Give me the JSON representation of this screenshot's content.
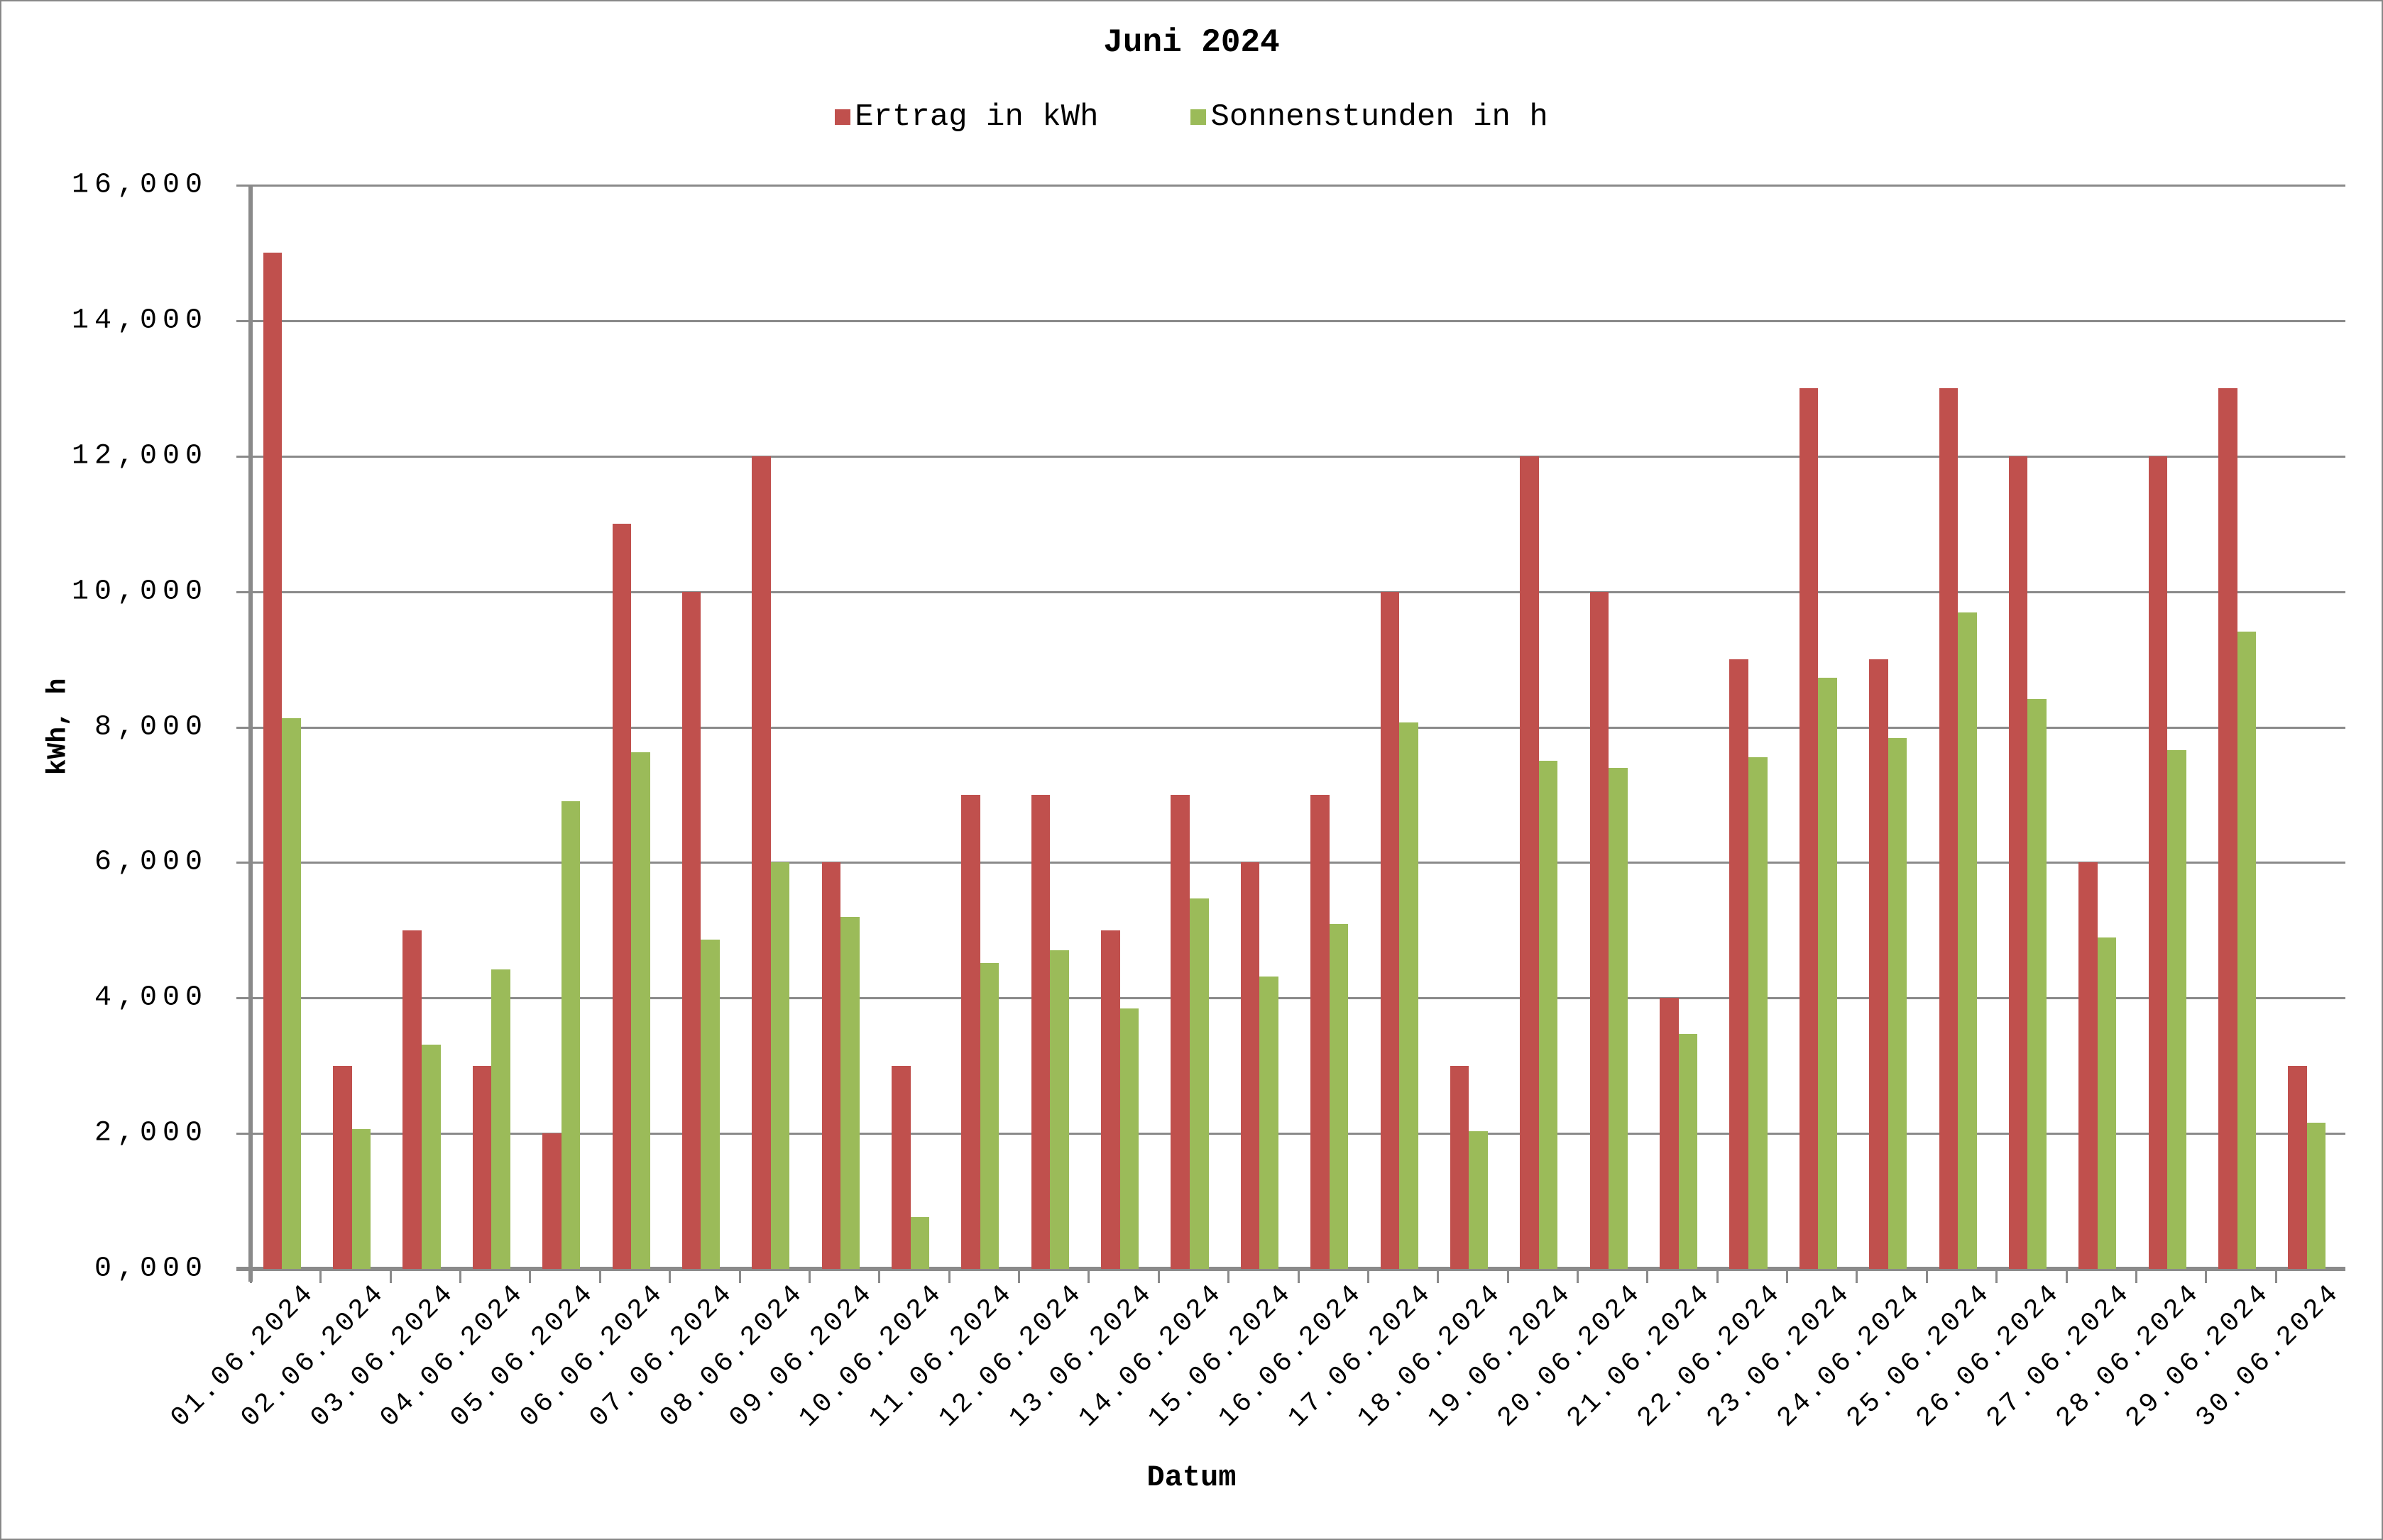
{
  "chart_data": {
    "type": "bar",
    "title": "Juni 2024",
    "xlabel": "Datum",
    "ylabel": "kWh, h",
    "ylim": [
      0,
      16
    ],
    "yticks": [
      "0,000",
      "2,000",
      "4,000",
      "6,000",
      "8,000",
      "10,000",
      "12,000",
      "14,000",
      "16,000"
    ],
    "grid": true,
    "legend_position": "top",
    "categories": [
      "01.06.2024",
      "02.06.2024",
      "03.06.2024",
      "04.06.2024",
      "05.06.2024",
      "06.06.2024",
      "07.06.2024",
      "08.06.2024",
      "09.06.2024",
      "10.06.2024",
      "11.06.2024",
      "12.06.2024",
      "13.06.2024",
      "14.06.2024",
      "15.06.2024",
      "16.06.2024",
      "17.06.2024",
      "18.06.2024",
      "19.06.2024",
      "20.06.2024",
      "21.06.2024",
      "22.06.2024",
      "23.06.2024",
      "24.06.2024",
      "25.06.2024",
      "26.06.2024",
      "27.06.2024",
      "28.06.2024",
      "29.06.2024",
      "30.06.2024"
    ],
    "series": [
      {
        "name": "Ertrag in kWh",
        "color": "#c0504d",
        "values": [
          15,
          3,
          5,
          3,
          2,
          11,
          10,
          12,
          6,
          3,
          7,
          7,
          5,
          7,
          6,
          7,
          10,
          3,
          12,
          10,
          4,
          9,
          13,
          9,
          13,
          12,
          6,
          12,
          13,
          3
        ]
      },
      {
        "name": "Sonnenstunden in h",
        "color": "#9bbb59",
        "values": [
          8.13,
          2.06,
          3.31,
          4.42,
          6.91,
          7.63,
          4.86,
          6.0,
          5.2,
          0.77,
          4.52,
          4.7,
          3.85,
          5.47,
          4.32,
          5.09,
          8.07,
          2.03,
          7.5,
          7.4,
          3.47,
          7.56,
          8.73,
          7.84,
          9.69,
          8.41,
          4.89,
          7.66,
          9.41,
          2.16
        ]
      }
    ]
  },
  "header": {
    "title": "Juni 2024"
  },
  "legend": {
    "items": [
      {
        "label": "Ertrag in kWh",
        "color": "#c0504d"
      },
      {
        "label": "Sonnenstunden in h",
        "color": "#9bbb59"
      }
    ]
  },
  "axes": {
    "y_title": "kWh, h",
    "x_title": "Datum"
  }
}
